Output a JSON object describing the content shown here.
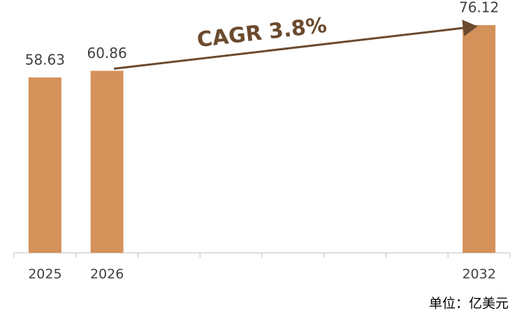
{
  "chart_data": {
    "type": "bar",
    "categories": [
      "2025",
      "2026",
      null,
      null,
      null,
      null,
      null,
      "2032"
    ],
    "values": [
      58.63,
      60.86,
      null,
      null,
      null,
      null,
      null,
      76.12
    ],
    "color": "#d4915a",
    "annotation": "CAGR 3.8%",
    "unit_note": "单位：亿美元"
  }
}
